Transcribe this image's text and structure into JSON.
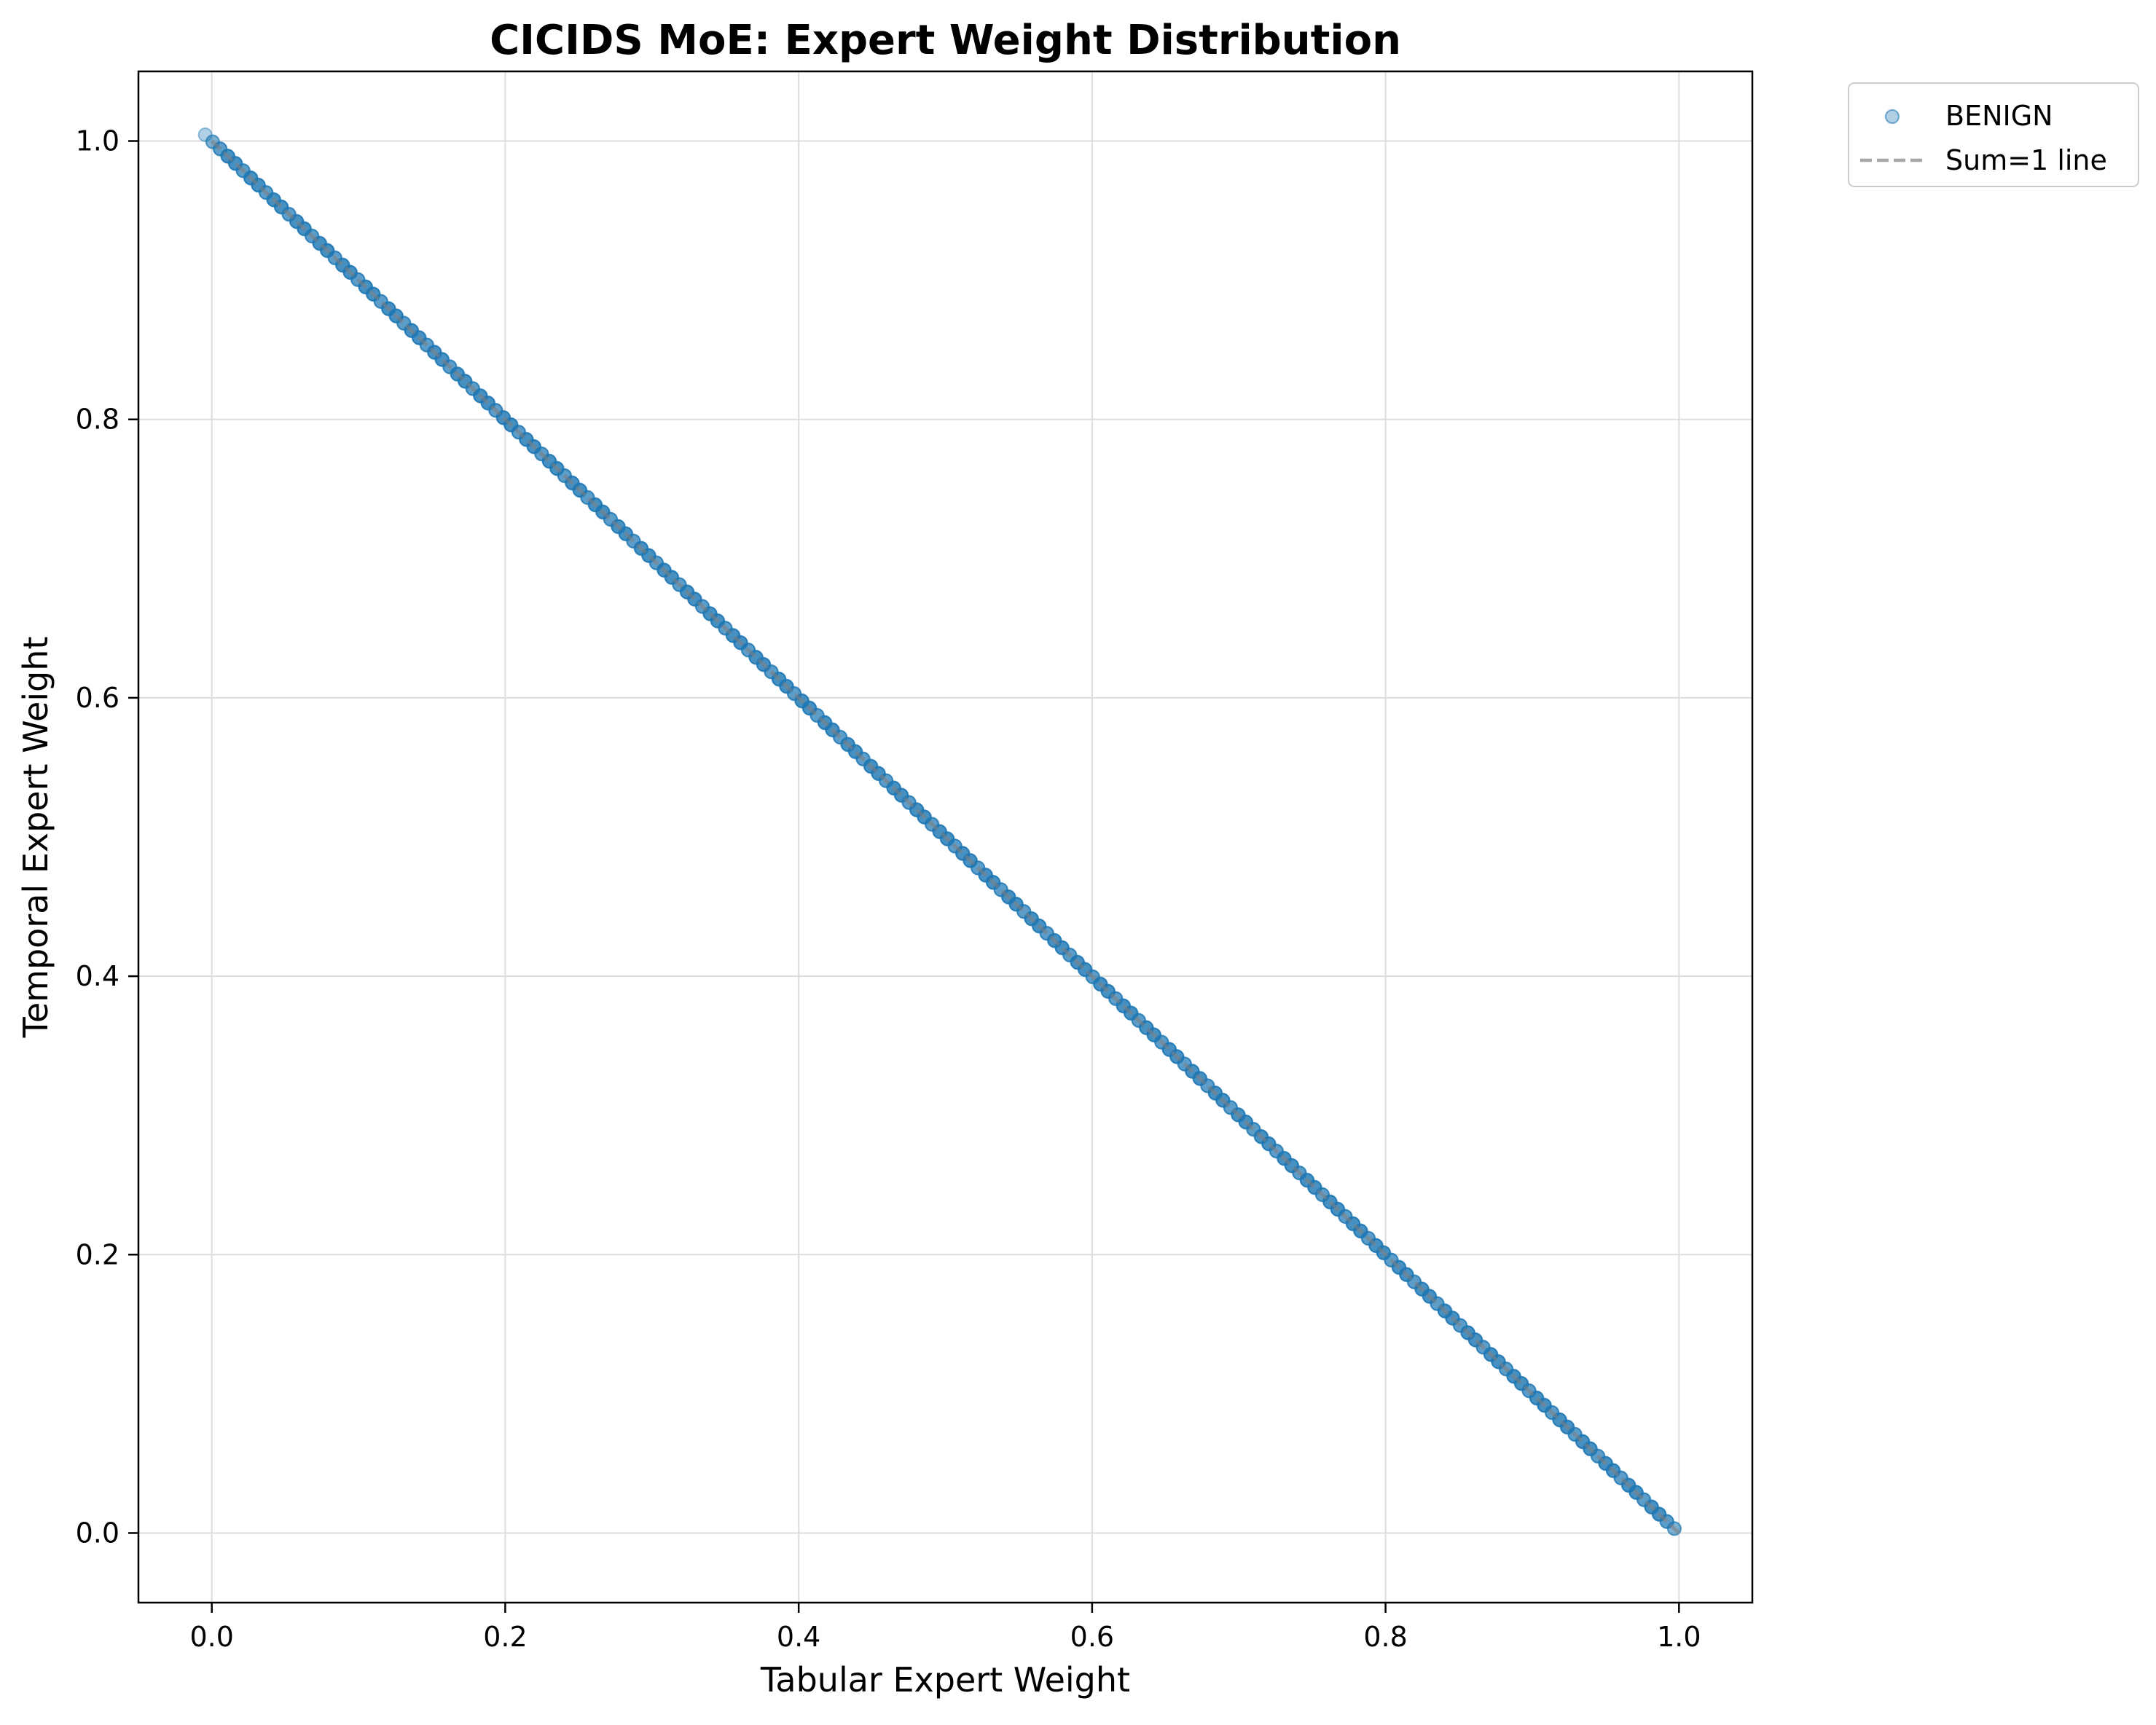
{
  "chart_data": {
    "type": "scatter",
    "title": "CICIDS MoE: Expert Weight Distribution",
    "xlabel": "Tabular Expert Weight",
    "ylabel": "Temporal Expert Weight",
    "xlim": [
      -0.05,
      1.05
    ],
    "ylim": [
      -0.05,
      1.05
    ],
    "xticks": [
      0.0,
      0.2,
      0.4,
      0.6,
      0.8,
      1.0
    ],
    "yticks": [
      0.0,
      0.2,
      0.4,
      0.6,
      0.8,
      1.0
    ],
    "xtick_labels": [
      "0.0",
      "0.2",
      "0.4",
      "0.6",
      "0.8",
      "1.0"
    ],
    "ytick_labels": [
      "0.0",
      "0.2",
      "0.4",
      "0.6",
      "0.8",
      "1.0"
    ],
    "grid": true,
    "legend_position": "outside top-right",
    "series": [
      {
        "name": "BENIGN",
        "kind": "scatter",
        "color": "#1f77b4",
        "x_range": [
          0.0,
          0.996
        ],
        "relation": "y = 1 - x",
        "points": [
          [
            0.0,
            1.0
          ],
          [
            0.05,
            0.95
          ],
          [
            0.1,
            0.9
          ],
          [
            0.15,
            0.85
          ],
          [
            0.2,
            0.8
          ],
          [
            0.25,
            0.75
          ],
          [
            0.3,
            0.7
          ],
          [
            0.35,
            0.65
          ],
          [
            0.4,
            0.6
          ],
          [
            0.45,
            0.55
          ],
          [
            0.5,
            0.5
          ],
          [
            0.55,
            0.45
          ],
          [
            0.6,
            0.4
          ],
          [
            0.65,
            0.35
          ],
          [
            0.7,
            0.3
          ],
          [
            0.75,
            0.25
          ],
          [
            0.8,
            0.2
          ],
          [
            0.85,
            0.15
          ],
          [
            0.9,
            0.1
          ],
          [
            0.95,
            0.05
          ],
          [
            0.996,
            0.004
          ]
        ]
      },
      {
        "name": "Sum=1 line",
        "kind": "line",
        "style": "dashed",
        "color": "#808080",
        "x": [
          0.0,
          1.0
        ],
        "y": [
          1.0,
          0.0
        ]
      }
    ]
  }
}
